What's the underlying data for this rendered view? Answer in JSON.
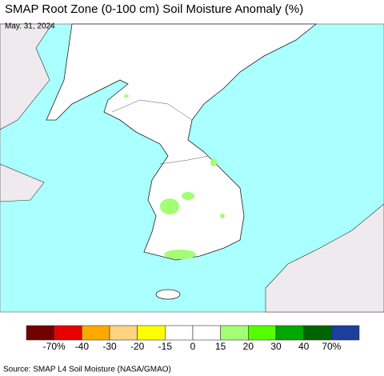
{
  "header": {
    "title": "SMAP Root Zone (0-100 cm) Soil Moisture Anomaly (%)",
    "date": "May. 31, 2024"
  },
  "colorbar": {
    "colors": [
      "#730000",
      "#e60000",
      "#ffaa00",
      "#ffd37f",
      "#ffff00",
      "#ffffff",
      "#ffffff",
      "#a3ff73",
      "#55ff00",
      "#00a800",
      "#006400",
      "#1c3e9c"
    ],
    "labels": [
      "-70%",
      "-40",
      "-30",
      "-20",
      "-15",
      "0",
      "15",
      "20",
      "30",
      "40",
      "70%"
    ]
  },
  "footer": {
    "source": "Source: SMAP L4 Soil Moisture (NASA/GMAO)"
  }
}
